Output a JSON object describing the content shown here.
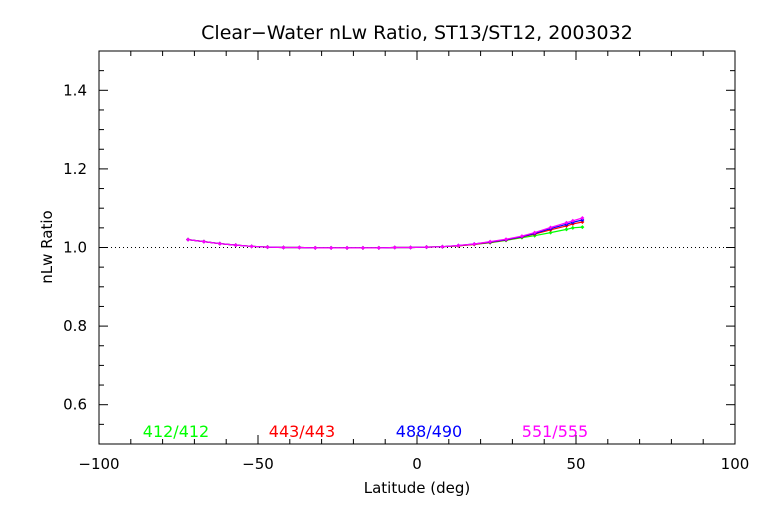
{
  "chart_data": {
    "type": "line",
    "title": "Clear−Water nLw Ratio, ST13/ST12, 2003032",
    "xlabel": "Latitude (deg)",
    "ylabel": "nLw Ratio",
    "xlim": [
      -100,
      100
    ],
    "ylim": [
      0.5,
      1.5
    ],
    "x_ticks": [
      -100,
      -50,
      0,
      50,
      100
    ],
    "x_tick_labels": [
      "−100",
      "−50",
      "0",
      "50",
      "100"
    ],
    "y_ticks": [
      0.6,
      0.8,
      1.0,
      1.2,
      1.4
    ],
    "y_tick_labels": [
      "0.6",
      "0.8",
      "1.0",
      "1.2",
      "1.4"
    ],
    "reference_line": 1.0,
    "x": [
      -72,
      -67,
      -62,
      -57,
      -52,
      -47,
      -42,
      -37,
      -32,
      -27,
      -22,
      -17,
      -12,
      -7,
      -2,
      3,
      8,
      13,
      18,
      23,
      28,
      33,
      37,
      42,
      47,
      49,
      52
    ],
    "series": [
      {
        "name": "412/412",
        "color": "#00ff00",
        "values": [
          1.02,
          1.015,
          1.01,
          1.006,
          1.003,
          1.001,
          1.0,
          1.0,
          0.999,
          0.999,
          0.999,
          0.999,
          0.999,
          1.0,
          1.0,
          1.001,
          1.002,
          1.004,
          1.008,
          1.012,
          1.018,
          1.025,
          1.03,
          1.038,
          1.046,
          1.05,
          1.052
        ]
      },
      {
        "name": "443/443",
        "color": "#ff0000",
        "values": [
          1.02,
          1.015,
          1.01,
          1.006,
          1.003,
          1.001,
          1.0,
          1.0,
          0.999,
          0.999,
          0.999,
          0.999,
          0.999,
          1.0,
          1.0,
          1.001,
          1.002,
          1.004,
          1.008,
          1.013,
          1.019,
          1.027,
          1.034,
          1.045,
          1.055,
          1.06,
          1.065
        ]
      },
      {
        "name": "488/490",
        "color": "#0000ff",
        "values": [
          1.02,
          1.015,
          1.01,
          1.006,
          1.003,
          1.001,
          1.0,
          1.0,
          0.999,
          0.999,
          0.999,
          0.999,
          0.999,
          1.0,
          1.0,
          1.001,
          1.002,
          1.005,
          1.009,
          1.014,
          1.02,
          1.028,
          1.036,
          1.048,
          1.059,
          1.064,
          1.07
        ]
      },
      {
        "name": "551/555",
        "color": "#ff00ff",
        "values": [
          1.02,
          1.015,
          1.01,
          1.006,
          1.003,
          1.001,
          1.0,
          1.0,
          0.999,
          0.999,
          0.999,
          0.999,
          0.999,
          1.0,
          1.0,
          1.001,
          1.002,
          1.005,
          1.009,
          1.015,
          1.021,
          1.029,
          1.038,
          1.051,
          1.063,
          1.068,
          1.075
        ]
      }
    ],
    "grid": false,
    "legend_placement": "bottom inside plot, horizontal row"
  }
}
